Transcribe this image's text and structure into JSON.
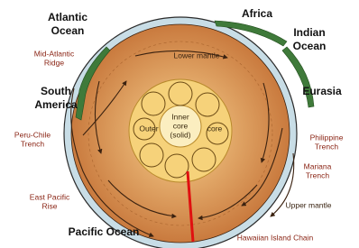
{
  "labels": {
    "atlantic_ocean": [
      "Atlantic",
      "Ocean"
    ],
    "africa": [
      "Africa"
    ],
    "indian_ocean": [
      "Indian",
      "Ocean"
    ],
    "mid_atlantic_ridge": [
      "Mid-Atlantic",
      "Ridge"
    ],
    "lower_mantle": [
      "Lower mantle"
    ],
    "south_america": [
      "South",
      "America"
    ],
    "eurasia": [
      "Eurasia"
    ],
    "inner_core": [
      "Inner",
      "core",
      "(solid)"
    ],
    "outer_core": [
      "Outer",
      "core"
    ],
    "peru_chile_trench": [
      "Peru-Chile",
      "Trench"
    ],
    "philippine_trench": [
      "Philippine",
      "Trench"
    ],
    "mariana_trench": [
      "Mariana",
      "Trench"
    ],
    "east_pacific_rise": [
      "East Pacific",
      "Rise"
    ],
    "upper_mantle": [
      "Upper mantle"
    ],
    "pacific_ocean": [
      "Pacific Ocean"
    ],
    "hawaiian_island_chain": [
      "Hawaiian Island Chain"
    ]
  }
}
